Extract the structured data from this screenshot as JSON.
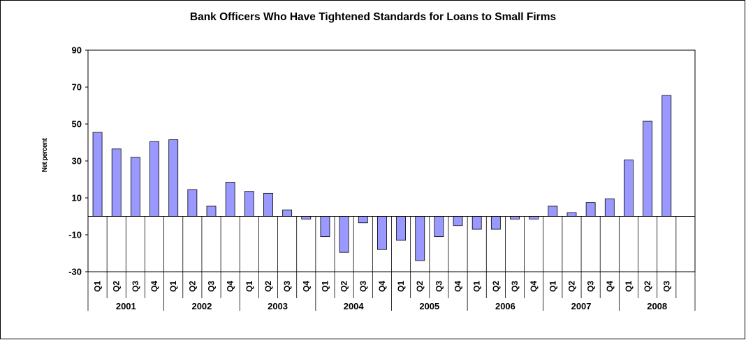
{
  "chart_data": {
    "type": "bar",
    "title": "Bank Officers Who Have Tightened Standards for Loans to Small Firms",
    "ylabel": "Net percent",
    "xlabel": "",
    "ylim": [
      -30,
      90
    ],
    "yticks": [
      90,
      70,
      50,
      30,
      10,
      -10,
      -30
    ],
    "years": [
      "2001",
      "2002",
      "2003",
      "2004",
      "2005",
      "2006",
      "2007",
      "2008"
    ],
    "categories": [
      "Q1",
      "Q2",
      "Q3",
      "Q4",
      "Q1",
      "Q2",
      "Q3",
      "Q4",
      "Q1",
      "Q2",
      "Q3",
      "Q4",
      "Q1",
      "Q2",
      "Q3",
      "Q4",
      "Q1",
      "Q2",
      "Q3",
      "Q4",
      "Q1",
      "Q2",
      "Q3",
      "Q4",
      "Q1",
      "Q2",
      "Q3",
      "Q4",
      "Q1",
      "Q2",
      "Q3"
    ],
    "values": [
      45.5,
      36.5,
      32,
      40.5,
      41.5,
      14.5,
      5.5,
      18.5,
      13.5,
      12.5,
      3.5,
      -1.5,
      -11,
      -19.5,
      -3.5,
      -18,
      -13,
      -24,
      -11,
      -5,
      -7,
      -7,
      -1.5,
      -1.5,
      5.5,
      2,
      7.5,
      9.5,
      30.5,
      51.5,
      65.5
    ],
    "bar_color": "#9999ff",
    "gridlines": false,
    "legend": "none"
  }
}
